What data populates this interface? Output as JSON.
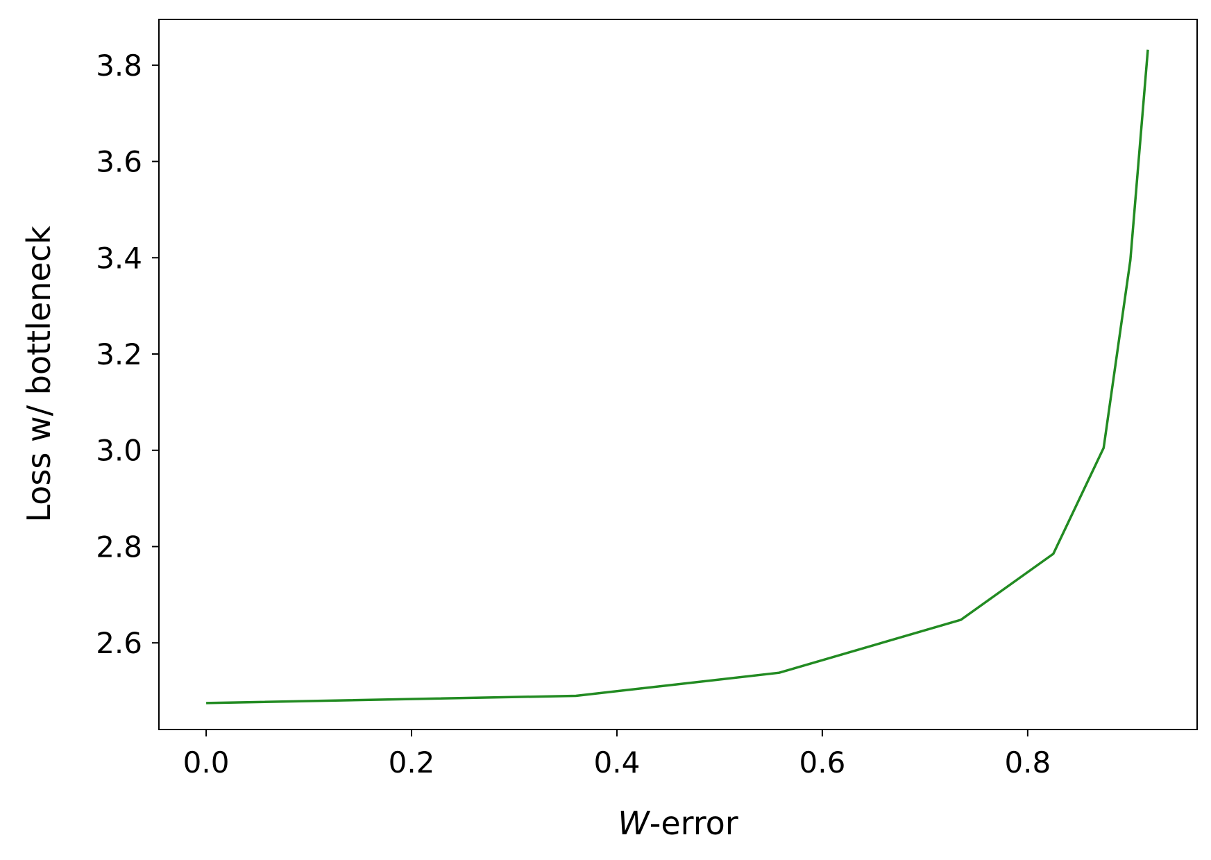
{
  "chart_data": {
    "type": "line",
    "title": "",
    "xlabel_italic_part": "W",
    "xlabel_rest": "-error",
    "ylabel": "Loss w/ bottleneck",
    "xlim": [
      -0.046,
      0.965
    ],
    "ylim": [
      2.42,
      3.895
    ],
    "xticks": [
      0.0,
      0.2,
      0.4,
      0.6,
      0.8
    ],
    "xtick_labels": [
      "0.0",
      "0.2",
      "0.4",
      "0.6",
      "0.8"
    ],
    "yticks": [
      2.6,
      2.8,
      3.0,
      3.2,
      3.4,
      3.6,
      3.8
    ],
    "ytick_labels": [
      "2.6",
      "2.8",
      "3.0",
      "3.2",
      "3.4",
      "3.6",
      "3.8"
    ],
    "grid": false,
    "series": [
      {
        "color": "#228b22",
        "x": [
          0.0,
          0.36,
          0.558,
          0.735,
          0.825,
          0.874,
          0.9,
          0.917
        ],
        "y": [
          2.475,
          2.49,
          2.538,
          2.648,
          2.785,
          3.005,
          3.395,
          3.832
        ]
      }
    ]
  }
}
